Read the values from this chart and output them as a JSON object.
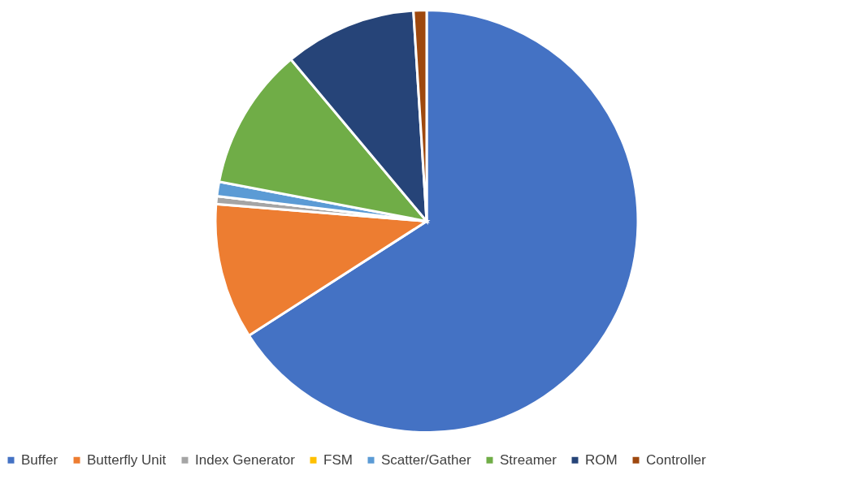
{
  "chart_data": {
    "type": "pie",
    "categories": [
      "Buffer",
      "Butterfly Unit",
      "Index Generator",
      "FSM",
      "Scatter/Gather",
      "Streamer",
      "ROM",
      "Controller"
    ],
    "values": [
      65.9,
      10.4,
      0.6,
      0,
      1.1,
      10.9,
      10.1,
      1.0
    ],
    "colors": [
      "#4472c4",
      "#ed7d31",
      "#a5a5a5",
      "#ffc000",
      "#5b9bd5",
      "#70ad47",
      "#264478",
      "#9e480e"
    ],
    "legend": "bottom"
  }
}
